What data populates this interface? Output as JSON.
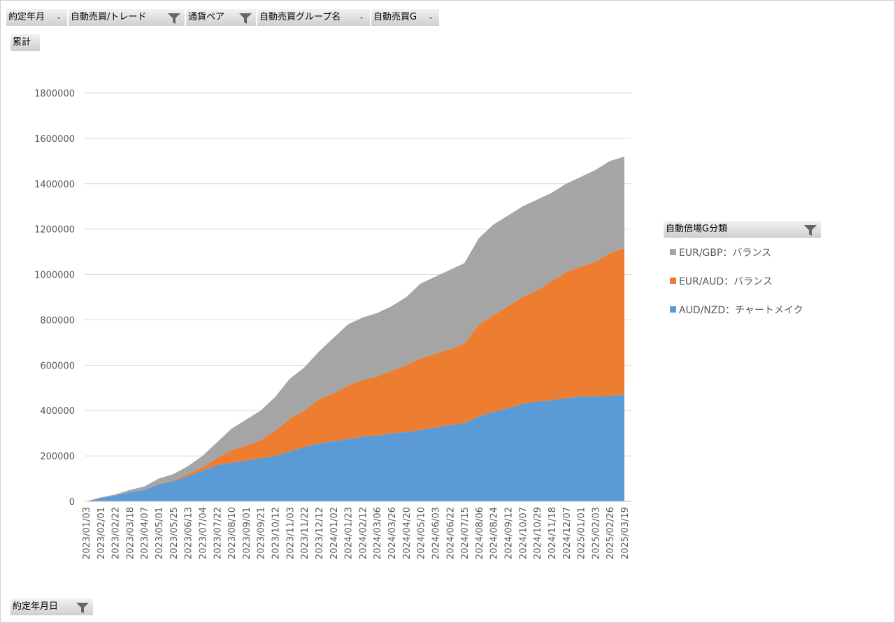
{
  "filters": [
    "約定年月",
    "自動売買/トレード",
    "通貨ペア",
    "自動売買グループ名",
    "自動売買G"
  ],
  "value_field": "累計",
  "axis_field": "約定年月日",
  "chart_data": {
    "type": "stacked-area",
    "legend_title": "自動倍場G分類",
    "categories": [
      "2023/01/03",
      "2023/02/01",
      "2023/02/22",
      "2023/03/18",
      "2023/04/07",
      "2023/05/01",
      "2023/05/25",
      "2023/06/13",
      "2023/07/04",
      "2023/07/22",
      "2023/08/10",
      "2023/09/01",
      "2023/09/21",
      "2023/10/12",
      "2023/11/03",
      "2023/11/22",
      "2023/12/12",
      "2024/01/02",
      "2024/01/23",
      "2024/02/12",
      "2024/03/06",
      "2024/03/26",
      "2024/04/20",
      "2024/05/10",
      "2024/06/03",
      "2024/06/22",
      "2024/07/15",
      "2024/08/06",
      "2024/08/24",
      "2024/09/12",
      "2024/10/07",
      "2024/10/29",
      "2024/11/18",
      "2024/12/07",
      "2025/01/01",
      "2025/02/03",
      "2025/02/26",
      "2025/03/19"
    ],
    "series": [
      {
        "name": "EUR/GBP：バランス",
        "color": "#a5a5a5",
        "values": [
          0,
          2000,
          5000,
          10000,
          15000,
          22000,
          28000,
          35000,
          50000,
          70000,
          95000,
          115000,
          130000,
          150000,
          175000,
          190000,
          210000,
          245000,
          270000,
          275000,
          280000,
          285000,
          300000,
          330000,
          340000,
          350000,
          355000,
          380000,
          400000,
          400000,
          400000,
          400000,
          390000,
          390000,
          395000,
          405000,
          405000,
          405000
        ]
      },
      {
        "name": "EUR/AUD：バランス",
        "color": "#ed7d31",
        "values": [
          0,
          0,
          0,
          0,
          0,
          3000,
          2000,
          10000,
          15000,
          30000,
          55000,
          65000,
          80000,
          110000,
          145000,
          160000,
          195000,
          210000,
          235000,
          250000,
          260000,
          275000,
          295000,
          315000,
          325000,
          335000,
          350000,
          405000,
          425000,
          450000,
          470000,
          490000,
          525000,
          555000,
          573000,
          592000,
          630000,
          645000
        ]
      },
      {
        "name": "AUD/NZD：チャートメイク",
        "color": "#5b9bd5",
        "values": [
          0,
          15000,
          25000,
          40000,
          50000,
          75000,
          90000,
          110000,
          135000,
          160000,
          170000,
          180000,
          190000,
          200000,
          220000,
          240000,
          255000,
          265000,
          275000,
          285000,
          290000,
          300000,
          305000,
          315000,
          325000,
          335000,
          345000,
          375000,
          395000,
          410000,
          430000,
          440000,
          445000,
          455000,
          462000,
          463000,
          465000,
          470000
        ]
      }
    ],
    "ylim": [
      0,
      1800000
    ],
    "yticks": [
      0,
      200000,
      400000,
      600000,
      800000,
      1000000,
      1200000,
      1400000,
      1600000,
      1800000
    ],
    "grid": true
  }
}
